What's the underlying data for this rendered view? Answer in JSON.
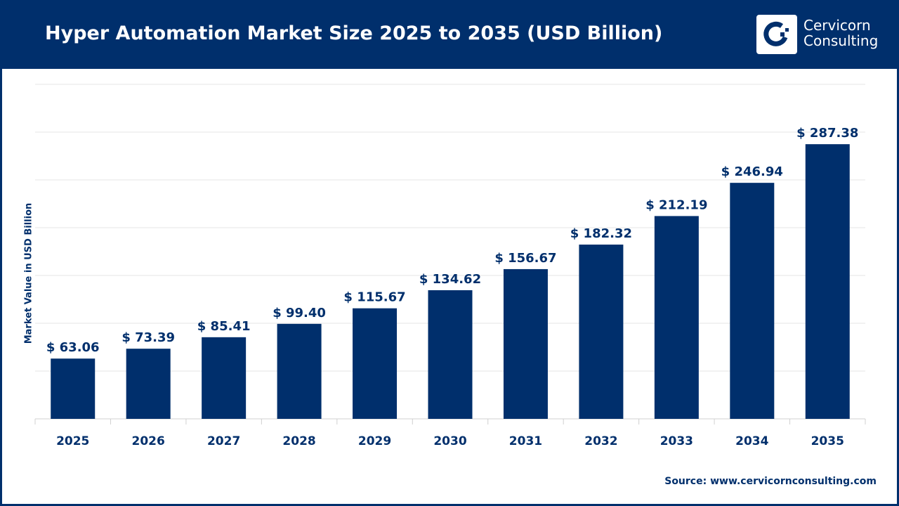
{
  "header": {
    "title": "Hyper Automation Market Size 2025 to 2035 (USD Billion)"
  },
  "logo": {
    "line1": "Cervicorn",
    "line2": "Consulting"
  },
  "source": "Source: www.cervicornconsulting.com",
  "colors": {
    "bar": "#002f6c",
    "header": "#002f6c",
    "grid": "#e6e6e6"
  },
  "chart_data": {
    "type": "bar",
    "title": "Hyper Automation Market Size 2025 to 2035 (USD Billion)",
    "xlabel": "",
    "ylabel": "Market Value in USD Billion",
    "categories": [
      "2025",
      "2026",
      "2027",
      "2028",
      "2029",
      "2030",
      "2031",
      "2032",
      "2033",
      "2034",
      "2035"
    ],
    "values": [
      63.06,
      73.39,
      85.41,
      99.4,
      115.67,
      134.62,
      156.67,
      182.32,
      212.19,
      246.94,
      287.38
    ],
    "data_labels": [
      "$ 63.06",
      "$ 73.39",
      "$ 85.41",
      "$ 99.40",
      "$ 115.67",
      "$ 134.62",
      "$ 156.67",
      "$ 182.32",
      "$ 212.19",
      "$ 246.94",
      "$ 287.38"
    ],
    "ylim": [
      0,
      350
    ],
    "ytick_step": 50,
    "grid": true,
    "yticklabels_shown": false,
    "legend": "none"
  }
}
